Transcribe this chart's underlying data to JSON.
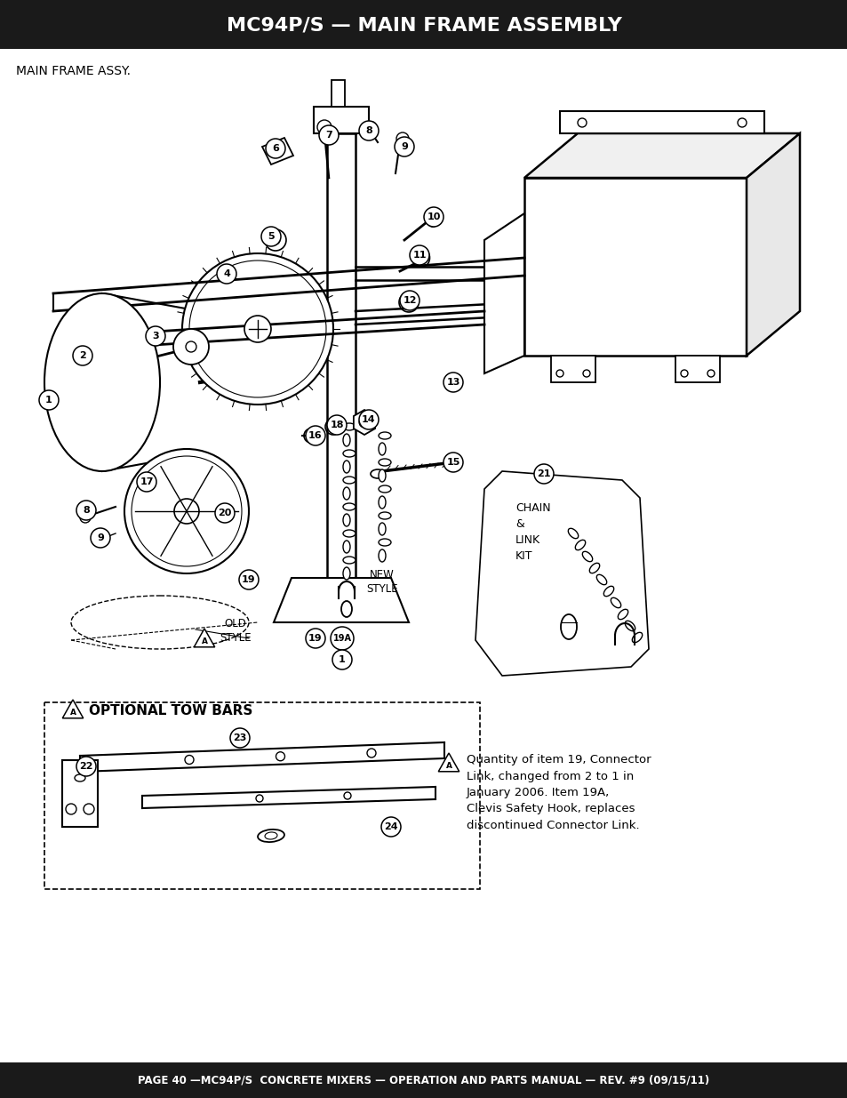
{
  "title": "MC94P/S — MAIN FRAME ASSEMBLY",
  "title_bg": "#1a1a1a",
  "title_color": "#ffffff",
  "subtitle": "MAIN FRAME ASSY.",
  "footer": "PAGE 40 —MC94P/S  CONCRETE MIXERS — OPERATION AND PARTS MANUAL — REV. #9 (09/15/11)",
  "footer_bg": "#1a1a1a",
  "footer_color": "#ffffff",
  "bg_color": "#ffffff",
  "note_text": "Quantity of item 19, Connector\nLink, changed from 2 to 1 in\nJanuary 2006. Item 19A,\nClevis Safety Hook, replaces\ndiscontinued Connector Link.",
  "optional_tow_bars": "OPTIONAL TOW BARS",
  "chain_link_kit": "CHAIN\n&\nLINK\nKIT",
  "old_style": "OLD\nSTYLE",
  "new_style": "NEW\nSTYLE"
}
